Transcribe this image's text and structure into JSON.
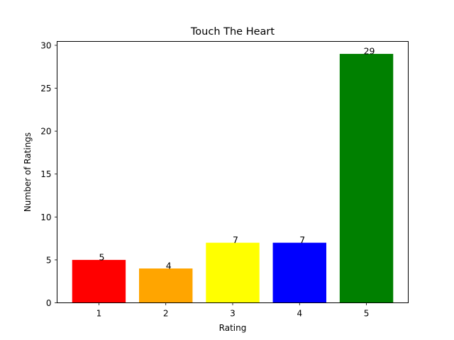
{
  "chart_data": {
    "type": "bar",
    "title": "Touch The Heart",
    "xlabel": "Rating",
    "ylabel": "Number of Ratings",
    "categories": [
      "1",
      "2",
      "3",
      "4",
      "5"
    ],
    "values": [
      5,
      4,
      7,
      7,
      29
    ],
    "data_labels": [
      "5",
      "4",
      "7",
      "7",
      "29"
    ],
    "colors": [
      "#ff0000",
      "#ffa500",
      "#ffff00",
      "#0000ff",
      "#008000"
    ],
    "ylim": [
      0,
      30.45
    ],
    "yticks": [
      0,
      5,
      10,
      15,
      20,
      25,
      30
    ],
    "grid": false,
    "legend": "none"
  }
}
